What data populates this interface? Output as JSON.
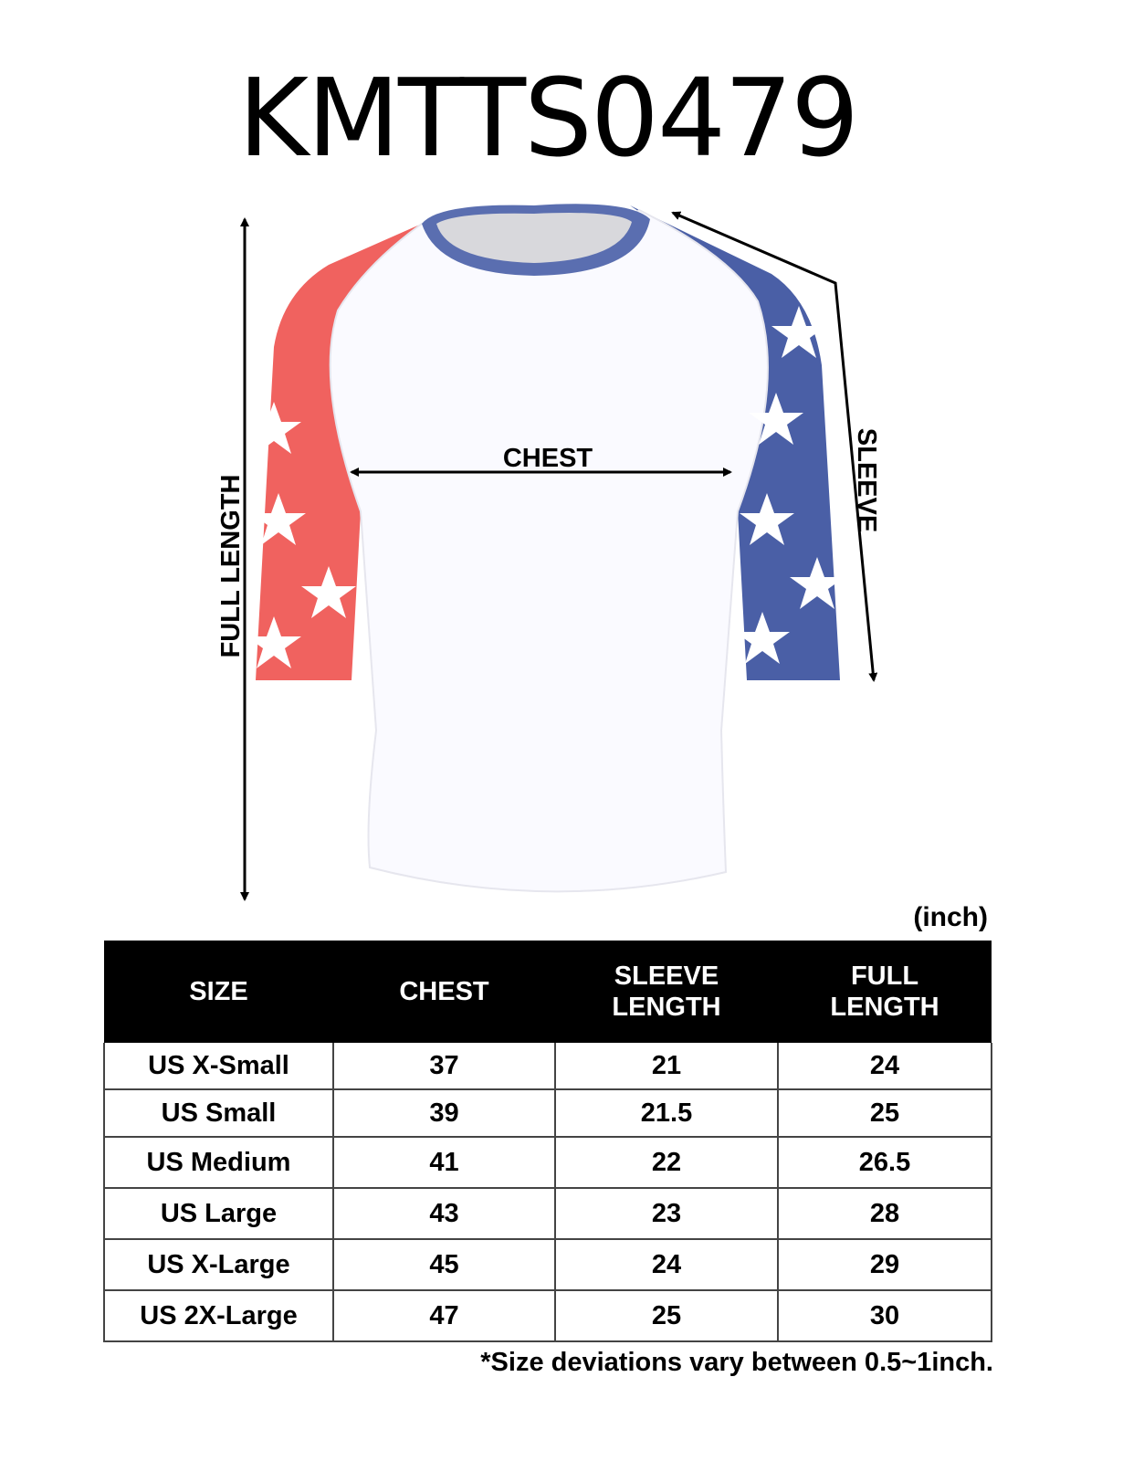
{
  "title": "KMTTS0479",
  "diagram": {
    "labels": {
      "full_length": "FULL LENGTH",
      "chest": "CHEST",
      "sleeve": "SLEEVE"
    },
    "colors": {
      "left_sleeve": "#f0625f",
      "right_sleeve": "#4a5fa6",
      "collar": "#5a6eb0",
      "body": "#ffffff"
    }
  },
  "table": {
    "unit": "(inch)",
    "headers": [
      "SIZE",
      "CHEST",
      "SLEEVE\nLENGTH",
      "FULL\nLENGTH"
    ],
    "rows": [
      [
        "US X-Small",
        "37",
        "21",
        "24"
      ],
      [
        "US Small",
        "39",
        "21.5",
        "25"
      ],
      [
        "US Medium",
        "41",
        "22",
        "26.5"
      ],
      [
        "US Large",
        "43",
        "23",
        "28"
      ],
      [
        "US X-Large",
        "45",
        "24",
        "29"
      ],
      [
        "US 2X-Large",
        "47",
        "25",
        "30"
      ]
    ],
    "note": "*Size deviations vary between 0.5~1inch."
  }
}
